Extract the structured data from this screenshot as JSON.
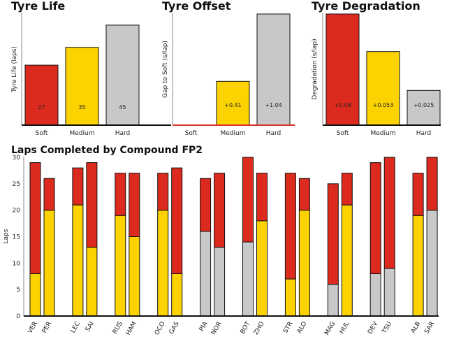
{
  "colors": {
    "Soft": "#dc2a1e",
    "Medium": "#fcd200",
    "Hard": "#c8c8c8",
    "axis": "#111111",
    "offset_axis": "#d9342a"
  },
  "chart_data": [
    {
      "type": "bar",
      "title": "Tyre Life",
      "ylabel": "Tyre Life (laps)",
      "categories": [
        "Soft",
        "Medium",
        "Hard"
      ],
      "values": [
        27,
        35,
        45
      ],
      "labels": [
        "27",
        "35",
        "45"
      ],
      "ylim": [
        0,
        50
      ]
    },
    {
      "type": "bar",
      "title": "Tyre Offset",
      "ylabel": "Gap to Soft (s/lap)",
      "categories": [
        "Soft",
        "Medium",
        "Hard"
      ],
      "values": [
        0,
        0.41,
        1.04
      ],
      "labels": [
        "",
        "+0.41",
        "+1.04"
      ],
      "ylim": [
        0,
        1.04
      ]
    },
    {
      "type": "bar",
      "title": "Tyre Degradation",
      "ylabel": "Degradation (s/lap)",
      "categories": [
        "Soft",
        "Medium",
        "Hard"
      ],
      "values": [
        0.08,
        0.053,
        0.025
      ],
      "labels": [
        "+0.08",
        "+0.053",
        "+0.025"
      ],
      "ylim": [
        0,
        0.08
      ]
    },
    {
      "type": "bar",
      "title": "Laps Completed by Compound FP2",
      "ylabel": "Laps",
      "ylim": [
        0,
        30
      ],
      "yticks": [
        0,
        5,
        10,
        15,
        20,
        25,
        30
      ],
      "drivers": [
        {
          "code": "VER",
          "base": "Medium",
          "base_laps": 8,
          "soft_laps": 21
        },
        {
          "code": "PER",
          "base": "Medium",
          "base_laps": 20,
          "soft_laps": 6
        },
        {
          "code": "LEC",
          "base": "Medium",
          "base_laps": 21,
          "soft_laps": 7
        },
        {
          "code": "SAI",
          "base": "Medium",
          "base_laps": 13,
          "soft_laps": 16
        },
        {
          "code": "RUS",
          "base": "Medium",
          "base_laps": 19,
          "soft_laps": 8
        },
        {
          "code": "HAM",
          "base": "Medium",
          "base_laps": 15,
          "soft_laps": 12
        },
        {
          "code": "OCO",
          "base": "Medium",
          "base_laps": 20,
          "soft_laps": 7
        },
        {
          "code": "GAS",
          "base": "Medium",
          "base_laps": 8,
          "soft_laps": 20
        },
        {
          "code": "PIA",
          "base": "Hard",
          "base_laps": 16,
          "soft_laps": 10
        },
        {
          "code": "NOR",
          "base": "Hard",
          "base_laps": 13,
          "soft_laps": 14
        },
        {
          "code": "BOT",
          "base": "Hard",
          "base_laps": 14,
          "soft_laps": 16
        },
        {
          "code": "ZHO",
          "base": "Medium",
          "base_laps": 18,
          "soft_laps": 9
        },
        {
          "code": "STR",
          "base": "Medium",
          "base_laps": 7,
          "soft_laps": 20
        },
        {
          "code": "ALO",
          "base": "Medium",
          "base_laps": 20,
          "soft_laps": 6
        },
        {
          "code": "MAG",
          "base": "Hard",
          "base_laps": 6,
          "soft_laps": 19
        },
        {
          "code": "HUL",
          "base": "Medium",
          "base_laps": 21,
          "soft_laps": 6
        },
        {
          "code": "DEV",
          "base": "Hard",
          "base_laps": 8,
          "soft_laps": 21
        },
        {
          "code": "TSU",
          "base": "Hard",
          "base_laps": 9,
          "soft_laps": 21
        },
        {
          "code": "ALB",
          "base": "Medium",
          "base_laps": 19,
          "soft_laps": 8
        },
        {
          "code": "SAR",
          "base": "Hard",
          "base_laps": 20,
          "soft_laps": 10
        }
      ]
    }
  ]
}
